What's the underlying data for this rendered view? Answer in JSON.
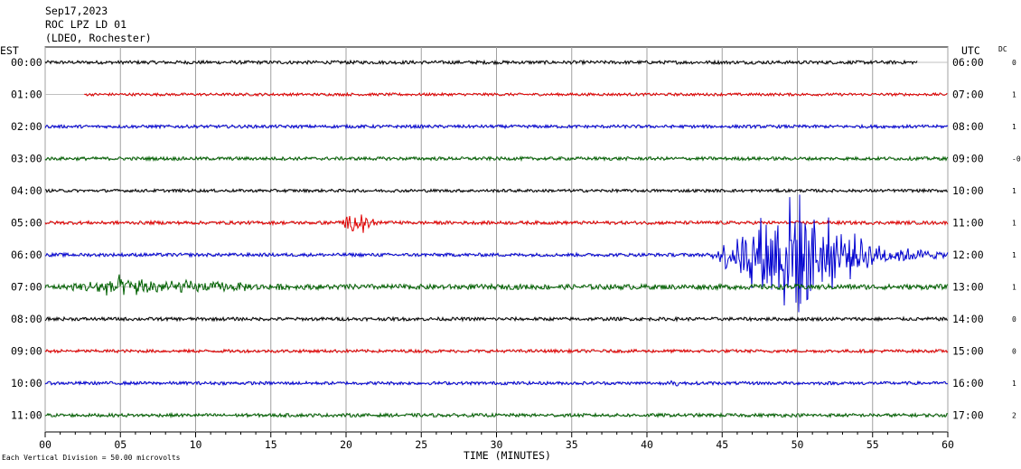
{
  "chart_data": {
    "type": "line",
    "title_lines": [
      "Sep17,2023",
      "ROC LPZ LD 01",
      "(LDEO, Rochester)"
    ],
    "left_axis_label": "EST",
    "right_axis_label": "UTC",
    "dc_label": "DC",
    "xlabel": "TIME (MINUTES)",
    "xlim": [
      0,
      60
    ],
    "x_ticks": [
      "00",
      "05",
      "10",
      "15",
      "20",
      "25",
      "30",
      "35",
      "40",
      "45",
      "50",
      "55",
      "60"
    ],
    "footer": "Each Vertical Division =   50.00 microvolts",
    "grid": true,
    "colors": [
      "#000000",
      "#e00000",
      "#0000d0",
      "#006000"
    ],
    "traces": [
      {
        "est": "00:00",
        "utc": "06:00",
        "dc": "0",
        "color": "#000000",
        "start_min": 0,
        "end_min": 58,
        "noise_uv": 1.6,
        "events": []
      },
      {
        "est": "01:00",
        "utc": "07:00",
        "dc": "1",
        "color": "#e00000",
        "start_min": 2.6,
        "end_min": 60,
        "noise_uv": 1.3,
        "events": []
      },
      {
        "est": "02:00",
        "utc": "08:00",
        "dc": "1",
        "color": "#0000d0",
        "start_min": 0,
        "end_min": 60,
        "noise_uv": 1.5,
        "events": []
      },
      {
        "est": "03:00",
        "utc": "09:00",
        "dc": "-0",
        "color": "#006000",
        "start_min": 0,
        "end_min": 60,
        "noise_uv": 1.6,
        "events": []
      },
      {
        "est": "04:00",
        "utc": "10:00",
        "dc": "1",
        "color": "#000000",
        "start_min": 0,
        "end_min": 60,
        "noise_uv": 1.4,
        "events": []
      },
      {
        "est": "05:00",
        "utc": "11:00",
        "dc": "1",
        "color": "#e00000",
        "start_min": 0,
        "end_min": 60,
        "noise_uv": 1.6,
        "events": [
          {
            "start_min": 19,
            "end_min": 24,
            "peak_min": 21,
            "amp_uv": 12
          }
        ]
      },
      {
        "est": "06:00",
        "utc": "12:00",
        "dc": "1",
        "color": "#0000d0",
        "start_min": 0,
        "end_min": 60,
        "noise_uv": 1.6,
        "events": [
          {
            "start_min": 44,
            "end_min": 60,
            "peak_min": 50,
            "amp_uv": 70
          }
        ]
      },
      {
        "est": "07:00",
        "utc": "13:00",
        "dc": "1",
        "color": "#006000",
        "start_min": 0,
        "end_min": 60,
        "noise_uv": 2.4,
        "events": [
          {
            "start_min": 0,
            "end_min": 30,
            "peak_min": 5,
            "amp_uv": 12
          }
        ]
      },
      {
        "est": "08:00",
        "utc": "14:00",
        "dc": "0",
        "color": "#000000",
        "start_min": 0,
        "end_min": 60,
        "noise_uv": 1.6,
        "events": []
      },
      {
        "est": "09:00",
        "utc": "15:00",
        "dc": "0",
        "color": "#e00000",
        "start_min": 0,
        "end_min": 60,
        "noise_uv": 1.5,
        "events": []
      },
      {
        "est": "10:00",
        "utc": "16:00",
        "dc": "1",
        "color": "#0000d0",
        "start_min": 0,
        "end_min": 60,
        "noise_uv": 1.5,
        "events": [
          {
            "start_min": 41,
            "end_min": 44,
            "peak_min": 42,
            "amp_uv": 4
          }
        ]
      },
      {
        "est": "11:00",
        "utc": "17:00",
        "dc": "2",
        "color": "#006000",
        "start_min": 0,
        "end_min": 60,
        "noise_uv": 1.6,
        "events": []
      }
    ]
  }
}
